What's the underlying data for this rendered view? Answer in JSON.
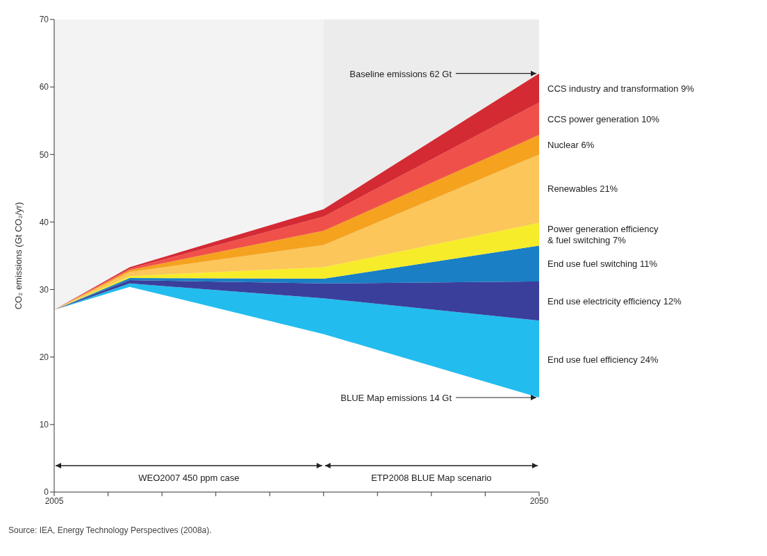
{
  "chart_data": {
    "type": "area",
    "stacked": true,
    "ylabel": "CO₂ emissions (Gt CO₂/yr)",
    "x": [
      2005,
      2012,
      2030,
      2050
    ],
    "xlim": [
      2005,
      2050
    ],
    "xticks": [
      {
        "value": 2005,
        "label": "2005"
      },
      {
        "value": 2010,
        "label": null
      },
      {
        "value": 2015,
        "label": null
      },
      {
        "value": 2020,
        "label": null
      },
      {
        "value": 2025,
        "label": null
      },
      {
        "value": 2030,
        "label": null
      },
      {
        "value": 2035,
        "label": null
      },
      {
        "value": 2040,
        "label": null
      },
      {
        "value": 2045,
        "label": null
      },
      {
        "value": 2050,
        "label": "2050"
      }
    ],
    "ylim": [
      0,
      70
    ],
    "yticks": [
      0,
      10,
      20,
      30,
      40,
      50,
      60,
      70
    ],
    "grid": false,
    "legend": false,
    "series": [
      {
        "color": "#ffffff",
        "values": [
          27,
          30.4,
          23.4,
          14
        ]
      },
      {
        "name": "End use fuel efficiency 24%",
        "color": "#22bdee",
        "values": [
          0,
          0.5,
          5.3,
          11.4
        ]
      },
      {
        "name": "End use electricity efficiency 12%",
        "color": "#3a3f9c",
        "values": [
          0,
          0.5,
          2.2,
          5.8
        ]
      },
      {
        "name": "End use fuel switching 11%",
        "color": "#1a7fc4",
        "values": [
          0,
          0.3,
          0.7,
          5.3
        ]
      },
      {
        "name": "Power generation efficiency\n& fuel switching 7%",
        "color": "#f7ec2a",
        "values": [
          0,
          0.3,
          1.7,
          3.4
        ]
      },
      {
        "name": "Renewables 21%",
        "color": "#fcc65a",
        "values": [
          0,
          0.6,
          3.3,
          10.1
        ]
      },
      {
        "name": "Nuclear 6%",
        "color": "#f5a21f",
        "values": [
          0,
          0.3,
          2.1,
          2.9
        ]
      },
      {
        "name": "CCS power generation 10%",
        "color": "#f0504a",
        "values": [
          0,
          0.2,
          2.1,
          4.8
        ]
      },
      {
        "name": "CCS industry and transformation 9%",
        "color": "#d42a33",
        "values": [
          0,
          0.2,
          1.1,
          4.3
        ]
      }
    ],
    "annotations": [
      {
        "text": "Baseline emissions 62 Gt",
        "x": 2050,
        "y": 62
      },
      {
        "text": "BLUE Map emissions 14 Gt",
        "x": 2050,
        "y": 14
      },
      "Source: IEA, Energy Technology Perspectives (2008a)."
    ],
    "bands": [
      {
        "axis": "x",
        "from": 2005,
        "to": 2030,
        "label": "WEO2007 450 ppm case",
        "color": "#f3f3f3"
      },
      {
        "axis": "x",
        "from": 2030,
        "to": 2050,
        "label": "ETP2008 BLUE Map scenario",
        "color": "#ececec"
      }
    ]
  }
}
